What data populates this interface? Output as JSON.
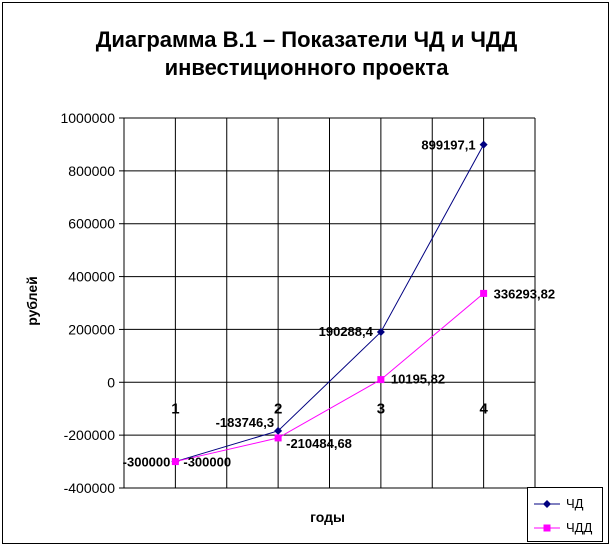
{
  "chart_data": {
    "type": "line",
    "title": "Диаграмма В.1 – Показатели ЧД и ЧДД",
    "subtitle": "инвестиционного проекта",
    "xlabel": "годы",
    "ylabel": "рублей",
    "x": [
      1,
      2,
      3,
      4
    ],
    "x_tick_labels": [
      "1",
      "2",
      "3",
      "4"
    ],
    "ylim": [
      -400000,
      1000000
    ],
    "y_ticks": [
      -400000,
      -200000,
      0,
      200000,
      400000,
      600000,
      800000,
      1000000
    ],
    "y_tick_labels": [
      "-400000",
      "-200000",
      "0",
      "200000",
      "400000",
      "600000",
      "800000",
      "1000000"
    ],
    "grid": true,
    "legend_position": "bottom-right",
    "series": [
      {
        "name": "ЧД",
        "color": "#000080",
        "marker": "diamond",
        "values": [
          -300000,
          -183746.3,
          190288.4,
          899197.1
        ],
        "data_labels": [
          "-300000",
          "-183746,3",
          "190288,4",
          "899197,1"
        ]
      },
      {
        "name": "ЧДД",
        "color": "#FF00FF",
        "marker": "square",
        "values": [
          -300000,
          -210484.68,
          10195.82,
          336293.82
        ],
        "data_labels": [
          "-300000",
          "-210484,68",
          "10195,82",
          "336293,82"
        ]
      }
    ]
  }
}
